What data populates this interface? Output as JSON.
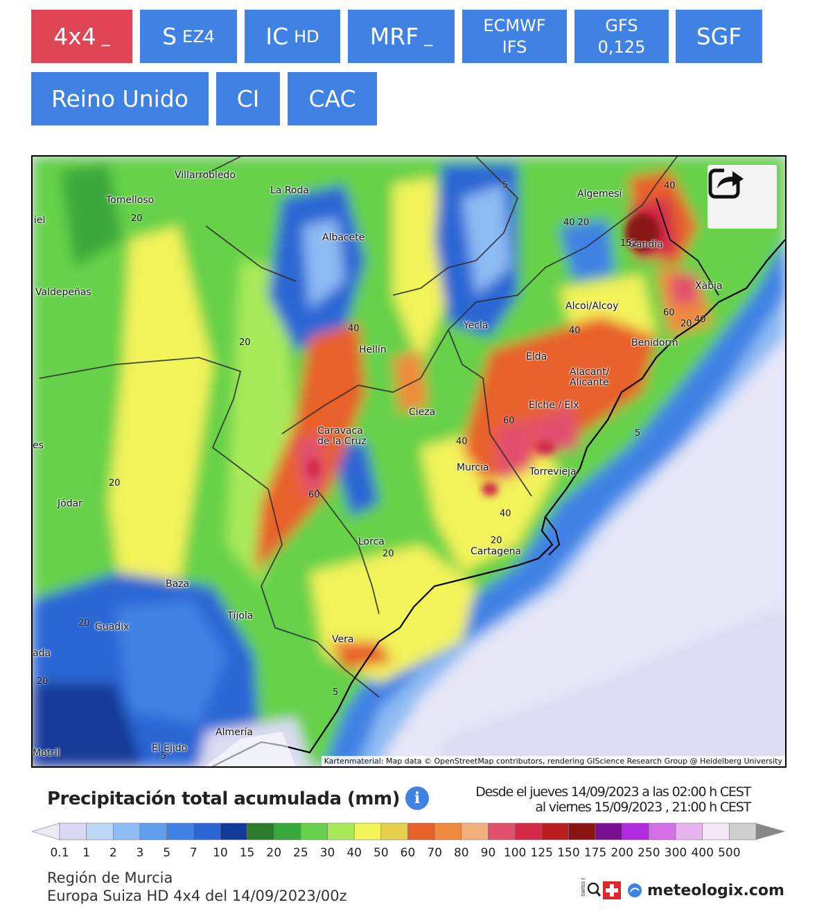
{
  "model_tabs": [
    {
      "label": "4x4",
      "sub": "_",
      "active": true
    },
    {
      "label": "S",
      "sub": "EZ4"
    },
    {
      "label": "IC",
      "sub": "HD"
    },
    {
      "label": "MRF",
      "sub": "_"
    },
    {
      "label_line1": "ECMWF",
      "label_line2": "IFS"
    },
    {
      "label_line1": "GFS",
      "label_line2": "0,125"
    },
    {
      "label": "SGF"
    }
  ],
  "region_tabs": [
    "Reino Unido",
    "CI",
    "CAC"
  ],
  "map": {
    "cities": [
      "Villarrobledo",
      "La Roda",
      "Tomelloso",
      "Albacete",
      "Valdepeñas",
      "Hellín",
      "Yecla",
      "Caravaca\nde la Cruz",
      "Cieza",
      "Murcia",
      "Jódar",
      "Lorca",
      "Cartagena",
      "Baza",
      "Tíjola",
      "Guadix",
      "Vera",
      "Almería",
      "El Ejido",
      "Motril",
      "Algemesí",
      "Gandia",
      "Xàbia",
      "Alcoi/Alcoy",
      "Benidorm",
      "Elda",
      "Alacant/\nAlicante",
      "Elche / Elx",
      "Torrevieja",
      "iel",
      "ada",
      "es"
    ],
    "contour_labels": [
      "20",
      "20",
      "40",
      "20",
      "20",
      "20",
      "60",
      "40",
      "60",
      "40",
      "40",
      "20",
      "20",
      "5",
      "5",
      "5",
      "40",
      "40 20",
      "152",
      "60",
      "20",
      "40",
      "5"
    ],
    "attribution": "Kartenmaterial: Map data © OpenStreetMap contributors, rendering GIScience Research Group @ Heidelberg University",
    "share_icon": "share-icon"
  },
  "legend": {
    "title": "Precipitación total acumulada (mm)",
    "info_icon": "info-icon",
    "period_line1": "Desde el jueves 14/09/2023 a las 02:00 h CEST",
    "period_line2": "al viernes 15/09/2023 , 21:00 h CEST",
    "ticks": [
      "0.1",
      "1",
      "2",
      "3",
      "5",
      "7",
      "10",
      "15",
      "20",
      "25",
      "30",
      "40",
      "50",
      "60",
      "70",
      "80",
      "90",
      "100",
      "125",
      "150",
      "175",
      "200",
      "250",
      "300",
      "400",
      "500"
    ],
    "colors": [
      "#d9d9f5",
      "#bcd6f7",
      "#8dbcf4",
      "#5f9ff0",
      "#3f82e4",
      "#2a66d4",
      "#123a99",
      "#2a7a2a",
      "#3aa83a",
      "#66d14a",
      "#a8ea5a",
      "#f3f35a",
      "#e6d24a",
      "#e8602a",
      "#f08a3c",
      "#f4b07a",
      "#e2506e",
      "#d22a48",
      "#b81e1e",
      "#8a1414",
      "#7a1090",
      "#b02ae0",
      "#d66ee8",
      "#e8b4f0",
      "#f5e6f8",
      "#cfcfcf"
    ],
    "region_name": "Región de Murcia",
    "model_run": "Europa Suiza HD 4x4 del 14/09/2023/00z",
    "brand": "meteologix.com",
    "brand_prefix": "SWISS HD"
  }
}
